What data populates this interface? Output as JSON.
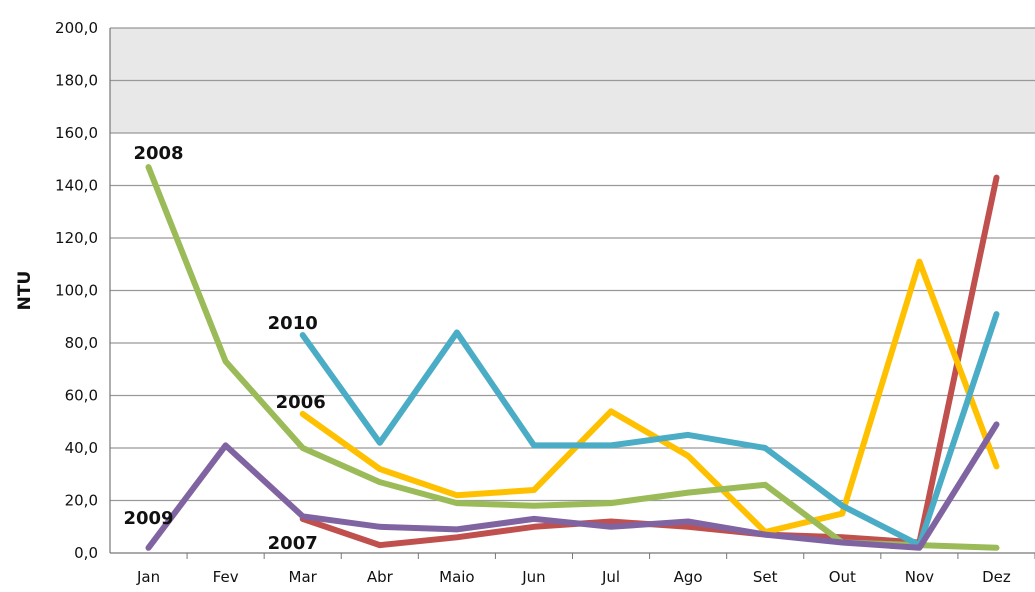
{
  "chart_data": {
    "type": "line",
    "title": "",
    "xlabel": "",
    "ylabel": "NTU",
    "ylim": [
      0,
      200
    ],
    "y_ticks": [
      "0,0",
      "20,0",
      "40,0",
      "60,0",
      "80,0",
      "100,0",
      "120,0",
      "140,0",
      "160,0",
      "180,0",
      "200,0"
    ],
    "categories": [
      "Jan",
      "Fev",
      "Mar",
      "Abr",
      "Maio",
      "Jun",
      "Jul",
      "Ago",
      "Set",
      "Out",
      "Nov",
      "Dez"
    ],
    "grid": true,
    "series": [
      {
        "name": "2006",
        "color": "#FFC000",
        "values": [
          null,
          null,
          53,
          32,
          22,
          24,
          54,
          37,
          8,
          15,
          111,
          33
        ]
      },
      {
        "name": "2007",
        "color": "#C0504D",
        "values": [
          null,
          null,
          13,
          3,
          6,
          10,
          12,
          10,
          7,
          6,
          4,
          143
        ]
      },
      {
        "name": "2008",
        "color": "#9BBB59",
        "values": [
          147,
          73,
          40,
          27,
          19,
          18,
          19,
          23,
          26,
          4,
          3,
          2
        ]
      },
      {
        "name": "2009",
        "color": "#8064A2",
        "values": [
          2,
          41,
          14,
          10,
          9,
          13,
          10,
          12,
          7,
          4,
          2,
          49
        ]
      },
      {
        "name": "2010",
        "color": "#4BACC6",
        "values": [
          null,
          null,
          83,
          42,
          84,
          41,
          41,
          45,
          40,
          18,
          3,
          91
        ]
      }
    ]
  }
}
